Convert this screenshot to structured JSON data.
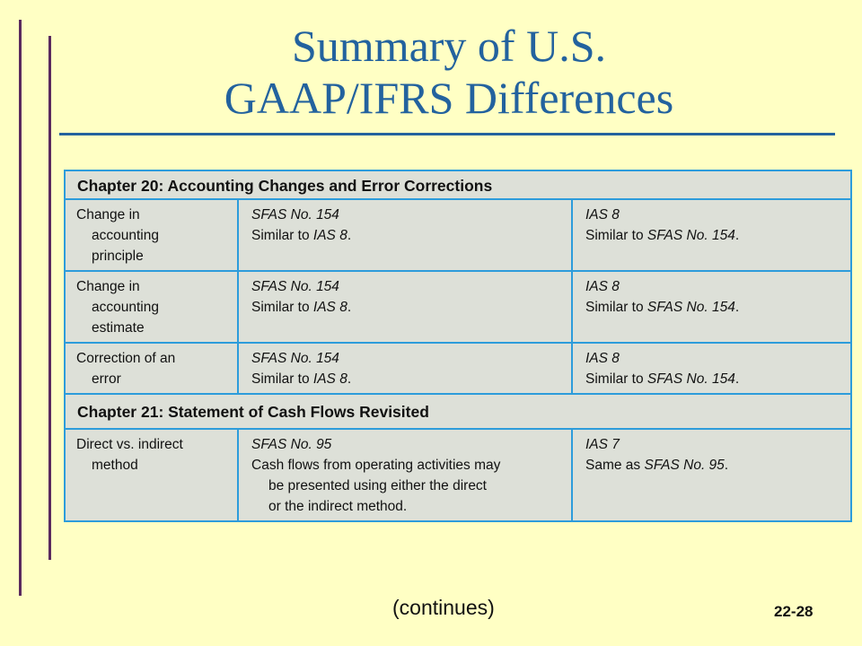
{
  "title": {
    "line1": "Summary of U.S.",
    "line2": "GAAP/IFRS Differences"
  },
  "table": {
    "sections": [
      {
        "heading": "Chapter 20: Accounting Changes and Error Corrections",
        "rows": [
          {
            "topic": [
              "Change in",
              "accounting",
              "principle"
            ],
            "us_std": "SFAS No. 154",
            "us_pre": "Similar to ",
            "us_ref": "IAS 8",
            "us_post": ".",
            "ifrs_std": "IAS 8",
            "ifrs_pre": "Similar to ",
            "ifrs_ref": "SFAS No. 154",
            "ifrs_post": "."
          },
          {
            "topic": [
              "Change in",
              "accounting",
              "estimate"
            ],
            "us_std": "SFAS No. 154",
            "us_pre": "Similar to ",
            "us_ref": "IAS 8",
            "us_post": ".",
            "ifrs_std": "IAS 8",
            "ifrs_pre": "Similar to ",
            "ifrs_ref": "SFAS No. 154",
            "ifrs_post": "."
          },
          {
            "topic": [
              "Correction of an",
              "error"
            ],
            "us_std": "SFAS No. 154",
            "us_pre": "Similar to ",
            "us_ref": "IAS 8",
            "us_post": ".",
            "ifrs_std": "IAS 8",
            "ifrs_pre": "Similar to ",
            "ifrs_ref": "SFAS No. 154",
            "ifrs_post": "."
          }
        ]
      },
      {
        "heading": "Chapter 21: Statement of Cash Flows Revisited",
        "rows": [
          {
            "topic": [
              "Direct vs. indirect",
              "method"
            ],
            "us_std": "SFAS No. 95",
            "us_lines": [
              "Cash flows from operating activities may",
              "be presented using either the direct",
              "or the indirect method."
            ],
            "ifrs_std": "IAS 7",
            "ifrs_pre": "Same as ",
            "ifrs_ref": "SFAS No. 95",
            "ifrs_post": "."
          }
        ]
      }
    ]
  },
  "footer": {
    "continues": "(continues)",
    "page_number": "22-28"
  },
  "colors": {
    "background": "#ffffc4",
    "title": "#23629e",
    "side_lines": "#5a2a5e",
    "table_fill": "#dde0d8",
    "table_border": "#2d9cdb"
  }
}
